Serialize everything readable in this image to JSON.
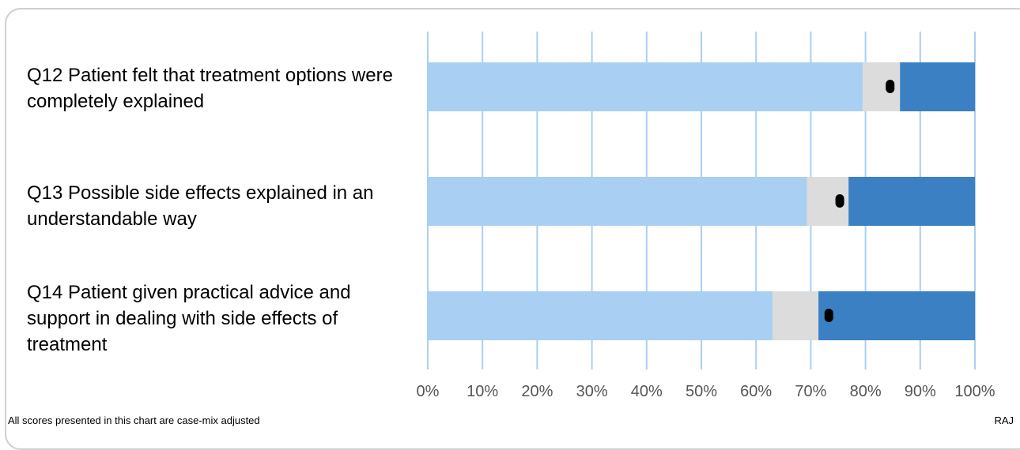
{
  "chart_data": {
    "type": "bar",
    "orientation": "horizontal",
    "stacked": true,
    "categories": [
      "Q12 Patient felt that treatment options were completely explained",
      "Q13 Possible side effects explained in an understandable way",
      "Q14 Patient given practical advice and support in dealing with side effects of treatment"
    ],
    "series": [
      {
        "color": "#a9cff3",
        "values": [
          79.5,
          69.3,
          63
        ]
      },
      {
        "color": "#dcdcdc",
        "values": [
          6.8,
          7.6,
          8.4
        ]
      },
      {
        "color": "#3a80c3",
        "values": [
          13.7,
          23.1,
          28.6
        ]
      }
    ],
    "markers": [
      84.5,
      75.3,
      73.3
    ],
    "marker_color": "#000000",
    "xlim": [
      0,
      100
    ],
    "xticks": [
      "0%",
      "10%",
      "20%",
      "30%",
      "40%",
      "50%",
      "60%",
      "70%",
      "80%",
      "90%",
      "100%"
    ],
    "grid": true,
    "grid_color": "#a9cff3"
  },
  "footnote": "All scores presented in this chart are case-mix adjusted",
  "code": "RAJ"
}
